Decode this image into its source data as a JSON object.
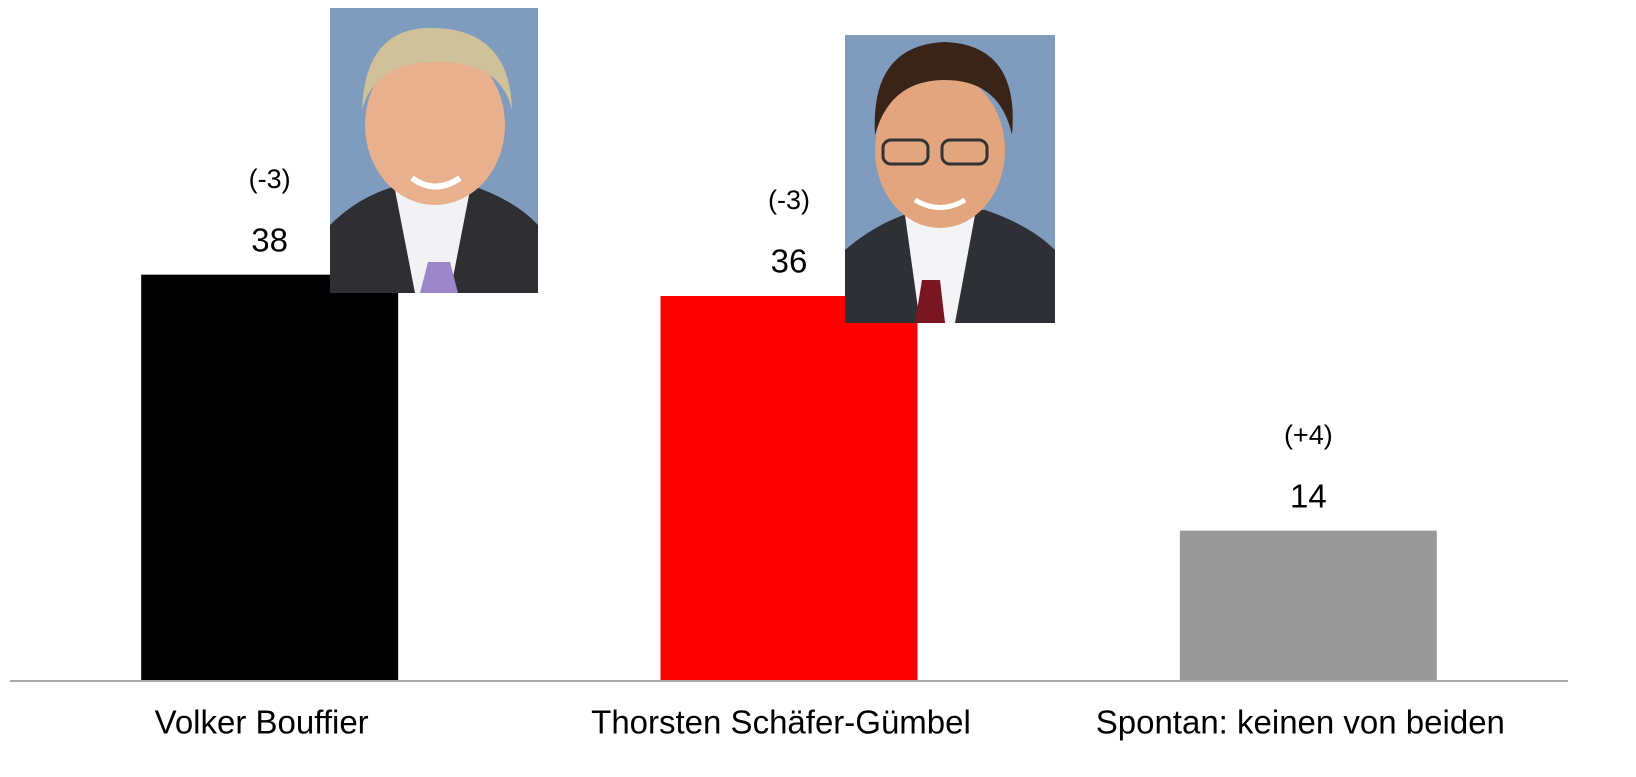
{
  "chart_data": {
    "type": "bar",
    "categories": [
      "Volker Bouffier",
      "Thorsten Schäfer-Gümbel",
      "Spontan: keinen von beiden"
    ],
    "values": [
      38,
      36,
      14
    ],
    "colors": [
      "#000000",
      "#ff0000",
      "#999999"
    ],
    "annotations": [
      "(-3)",
      "(-3)",
      "(+4)"
    ],
    "ylim": [
      0,
      60
    ]
  }
}
